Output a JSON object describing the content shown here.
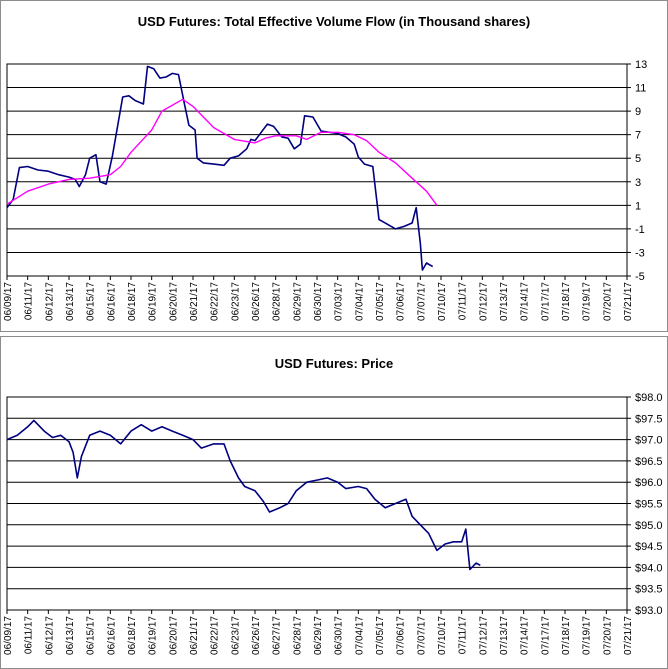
{
  "chart_data": [
    {
      "type": "line",
      "title": "USD Futures: Total Effective Volume Flow (in Thousand shares)",
      "xlabel": "",
      "ylabel": "",
      "y_axis_side": "right",
      "ylim": [
        -5,
        13
      ],
      "yticks": [
        "13",
        "11",
        "9",
        "7",
        "5",
        "3",
        "1",
        "-1",
        "-3",
        "-5"
      ],
      "grid": "horizontal",
      "categories": [
        "06/09/17",
        "06/11/17",
        "06/12/17",
        "06/13/17",
        "06/15/17",
        "06/16/17",
        "06/18/17",
        "06/19/17",
        "06/20/17",
        "06/21/17",
        "06/22/17",
        "06/23/17",
        "06/26/17",
        "06/28/17",
        "06/29/17",
        "06/30/17",
        "07/03/17",
        "07/04/17",
        "07/05/17",
        "07/06/17",
        "07/07/17",
        "07/10/17",
        "07/11/17",
        "07/12/17",
        "07/13/17",
        "07/14/17",
        "07/17/17",
        "07/18/17",
        "07/19/17",
        "07/20/17",
        "07/21/17"
      ],
      "series": [
        {
          "color": "#000080",
          "values": [
            [
              0,
              0.8
            ],
            [
              0.3,
              1.5
            ],
            [
              0.6,
              4.2
            ],
            [
              1,
              4.3
            ],
            [
              1.5,
              4.0
            ],
            [
              2,
              3.9
            ],
            [
              2.5,
              3.6
            ],
            [
              3,
              3.4
            ],
            [
              3.3,
              3.2
            ],
            [
              3.5,
              2.6
            ],
            [
              3.8,
              3.6
            ],
            [
              4,
              5.0
            ],
            [
              4.3,
              5.3
            ],
            [
              4.5,
              3.0
            ],
            [
              4.8,
              2.8
            ],
            [
              5.1,
              5.2
            ],
            [
              5.6,
              10.2
            ],
            [
              5.9,
              10.3
            ],
            [
              6.2,
              9.9
            ],
            [
              6.6,
              9.6
            ],
            [
              6.8,
              12.8
            ],
            [
              7.1,
              12.6
            ],
            [
              7.4,
              11.8
            ],
            [
              7.7,
              11.9
            ],
            [
              8,
              12.2
            ],
            [
              8.3,
              12.1
            ],
            [
              8.6,
              9.5
            ],
            [
              8.8,
              7.8
            ],
            [
              9.1,
              7.4
            ],
            [
              9.2,
              5.0
            ],
            [
              9.5,
              4.6
            ],
            [
              10,
              4.5
            ],
            [
              10.5,
              4.4
            ],
            [
              10.8,
              5.0
            ],
            [
              11.2,
              5.2
            ],
            [
              11.6,
              5.8
            ],
            [
              11.8,
              6.6
            ],
            [
              12,
              6.5
            ],
            [
              12.3,
              7.2
            ],
            [
              12.6,
              7.9
            ],
            [
              12.9,
              7.7
            ],
            [
              13.3,
              6.8
            ],
            [
              13.6,
              6.7
            ],
            [
              13.9,
              5.8
            ],
            [
              14.2,
              6.2
            ],
            [
              14.4,
              8.6
            ],
            [
              14.8,
              8.5
            ],
            [
              15.2,
              7.3
            ],
            [
              15.6,
              7.2
            ],
            [
              16,
              7.1
            ],
            [
              16.4,
              6.8
            ],
            [
              16.8,
              6.2
            ],
            [
              17,
              5.1
            ],
            [
              17.3,
              4.5
            ],
            [
              17.7,
              4.3
            ],
            [
              18,
              -0.2
            ],
            [
              18.4,
              -0.6
            ],
            [
              18.8,
              -1.0
            ],
            [
              19.2,
              -0.8
            ],
            [
              19.6,
              -0.5
            ],
            [
              19.8,
              0.8
            ],
            [
              20,
              -2.2
            ],
            [
              20.1,
              -4.5
            ],
            [
              20.3,
              -3.9
            ],
            [
              20.6,
              -4.2
            ]
          ]
        },
        {
          "color": "#ff00ff",
          "values": [
            [
              0,
              1.1
            ],
            [
              1,
              2.2
            ],
            [
              2,
              2.8
            ],
            [
              3,
              3.2
            ],
            [
              4,
              3.3
            ],
            [
              5,
              3.6
            ],
            [
              5.5,
              4.3
            ],
            [
              6,
              5.5
            ],
            [
              7,
              7.4
            ],
            [
              7.5,
              9.0
            ],
            [
              8.5,
              10.0
            ],
            [
              9,
              9.4
            ],
            [
              10,
              7.6
            ],
            [
              11,
              6.6
            ],
            [
              12,
              6.3
            ],
            [
              12.5,
              6.7
            ],
            [
              13,
              6.9
            ],
            [
              14,
              6.9
            ],
            [
              14.5,
              6.6
            ],
            [
              15.2,
              7.2
            ],
            [
              16,
              7.2
            ],
            [
              16.8,
              7.0
            ],
            [
              17.4,
              6.5
            ],
            [
              18,
              5.5
            ],
            [
              18.8,
              4.6
            ],
            [
              19.6,
              3.3
            ],
            [
              20.3,
              2.2
            ],
            [
              20.8,
              1.0
            ]
          ]
        }
      ]
    },
    {
      "type": "line",
      "title": "USD Futures: Price",
      "xlabel": "",
      "ylabel": "",
      "y_axis_side": "right",
      "ylim": [
        93.0,
        98.0
      ],
      "yticks": [
        "$98.0",
        "$97.5",
        "$97.0",
        "$96.5",
        "$96.0",
        "$95.5",
        "$95.0",
        "$94.5",
        "$94.0",
        "$93.5",
        "$93.0"
      ],
      "grid": "horizontal",
      "categories": [
        "06/09/17",
        "06/11/17",
        "06/12/17",
        "06/13/17",
        "06/15/17",
        "06/16/17",
        "06/18/17",
        "06/19/17",
        "06/20/17",
        "06/21/17",
        "06/22/17",
        "06/23/17",
        "06/26/17",
        "06/27/17",
        "06/28/17",
        "06/29/17",
        "06/30/17",
        "07/04/17",
        "07/05/17",
        "07/06/17",
        "07/07/17",
        "07/10/17",
        "07/11/17",
        "07/12/17",
        "07/13/17",
        "07/14/17",
        "07/17/17",
        "07/18/17",
        "07/19/17",
        "07/20/17",
        "07/21/17"
      ],
      "series": [
        {
          "color": "#000080",
          "values": [
            [
              0,
              97.0
            ],
            [
              0.5,
              97.1
            ],
            [
              1,
              97.3
            ],
            [
              1.3,
              97.45
            ],
            [
              1.8,
              97.2
            ],
            [
              2.2,
              97.05
            ],
            [
              2.6,
              97.1
            ],
            [
              3,
              96.95
            ],
            [
              3.2,
              96.7
            ],
            [
              3.4,
              96.1
            ],
            [
              3.6,
              96.6
            ],
            [
              4,
              97.1
            ],
            [
              4.5,
              97.2
            ],
            [
              5,
              97.1
            ],
            [
              5.5,
              96.9
            ],
            [
              6,
              97.2
            ],
            [
              6.5,
              97.35
            ],
            [
              7,
              97.2
            ],
            [
              7.5,
              97.3
            ],
            [
              8,
              97.2
            ],
            [
              8.5,
              97.1
            ],
            [
              9,
              97.0
            ],
            [
              9.4,
              96.8
            ],
            [
              10,
              96.9
            ],
            [
              10.5,
              96.9
            ],
            [
              10.8,
              96.5
            ],
            [
              11.2,
              96.1
            ],
            [
              11.5,
              95.9
            ],
            [
              12,
              95.8
            ],
            [
              12.4,
              95.55
            ],
            [
              12.7,
              95.3
            ],
            [
              13.2,
              95.4
            ],
            [
              13.6,
              95.5
            ],
            [
              14,
              95.8
            ],
            [
              14.5,
              96.0
            ],
            [
              15,
              96.05
            ],
            [
              15.5,
              96.1
            ],
            [
              16,
              96.0
            ],
            [
              16.4,
              95.85
            ],
            [
              17,
              95.9
            ],
            [
              17.4,
              95.85
            ],
            [
              17.8,
              95.6
            ],
            [
              18.3,
              95.4
            ],
            [
              18.8,
              95.5
            ],
            [
              19.3,
              95.6
            ],
            [
              19.6,
              95.2
            ],
            [
              20,
              95.0
            ],
            [
              20.4,
              94.8
            ],
            [
              20.8,
              94.4
            ],
            [
              21.2,
              94.55
            ],
            [
              21.6,
              94.6
            ],
            [
              22,
              94.6
            ],
            [
              22.2,
              94.9
            ],
            [
              22.4,
              93.95
            ],
            [
              22.7,
              94.1
            ],
            [
              22.9,
              94.05
            ]
          ]
        }
      ]
    }
  ]
}
